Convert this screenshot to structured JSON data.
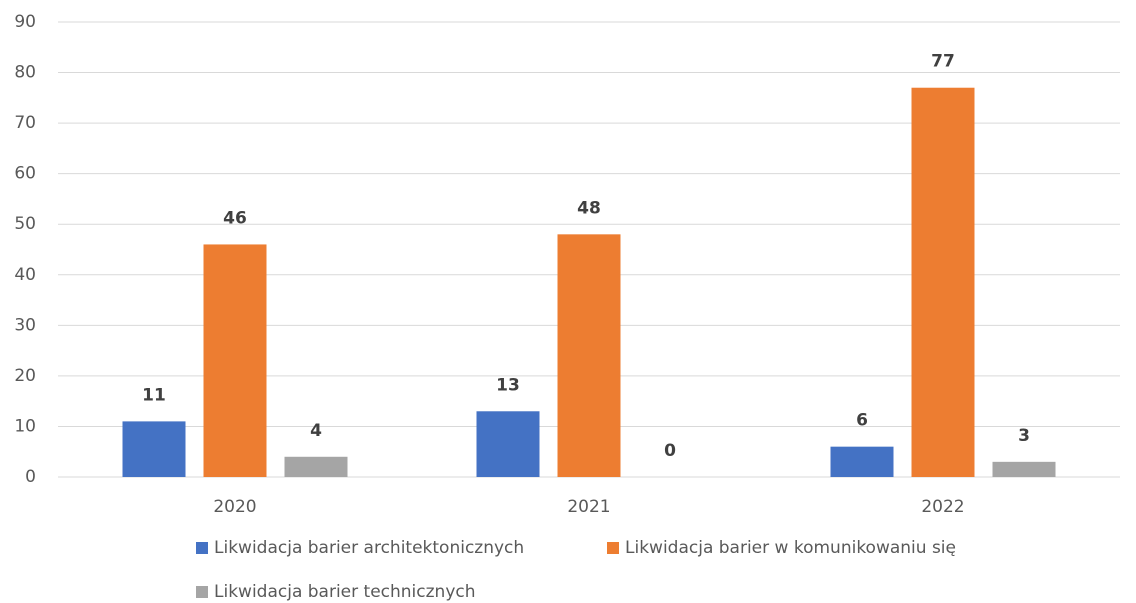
{
  "chart_data": {
    "type": "bar",
    "categories": [
      "2020",
      "2021",
      "2022"
    ],
    "series": [
      {
        "name": "Likwidacja barier architektonicznych",
        "color": "#4472c4",
        "values": [
          11,
          13,
          6
        ]
      },
      {
        "name": "Likwidacja barier w komunikowaniu się",
        "color": "#ed7d31",
        "values": [
          46,
          48,
          77
        ]
      },
      {
        "name": "Likwidacja barier technicznych",
        "color": "#a5a5a5",
        "values": [
          4,
          0,
          3
        ]
      }
    ],
    "ylim": [
      0,
      90
    ],
    "yticks": [
      0,
      10,
      20,
      30,
      40,
      50,
      60,
      70,
      80,
      90
    ],
    "grid": true,
    "legend": "bottom"
  }
}
